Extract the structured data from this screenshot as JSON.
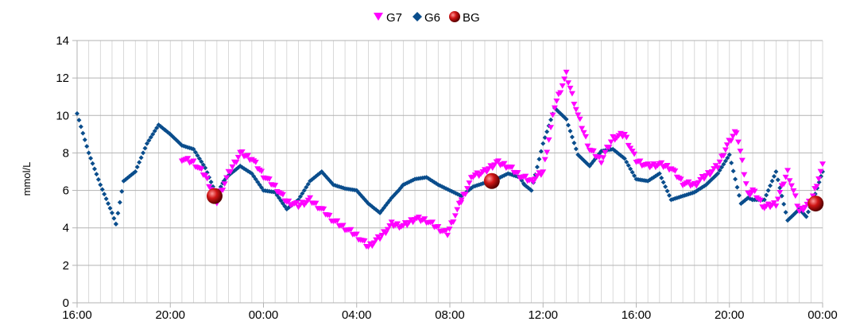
{
  "chart_data": {
    "type": "scatter",
    "ylabel": "mmol/L",
    "xlabel": "",
    "title": "",
    "ylim": [
      0,
      14
    ],
    "yticks": [
      0,
      2,
      4,
      6,
      8,
      10,
      12,
      14
    ],
    "xlim": [
      "16:00",
      "00:00 (+1 day)"
    ],
    "xticks": [
      "16:00",
      "20:00",
      "00:00",
      "04:00",
      "08:00",
      "12:00",
      "16:00",
      "20:00",
      "00:00"
    ],
    "grid": "vertical minor lines every 30 min, horizontal at y ticks",
    "legend": {
      "placement": "top-center",
      "entries": [
        "G7",
        "G6",
        "BG"
      ]
    },
    "series": [
      {
        "name": "G6",
        "color": "#0a4d8c",
        "marker": "diamond",
        "x_hours": [
          0.0,
          0.5,
          1.0,
          1.5,
          1.67,
          2.0,
          2.5,
          3.0,
          3.5,
          3.8,
          4.0,
          4.5,
          5.0,
          5.5,
          5.9,
          6.0,
          6.3,
          6.5,
          7.0,
          7.5,
          8.0,
          8.5,
          9.0,
          9.5,
          10.0,
          10.5,
          11.0,
          11.5,
          12.0,
          12.5,
          13.0,
          13.5,
          13.8,
          14.0,
          14.5,
          15.0,
          15.5,
          16.0,
          16.5,
          17.0,
          17.5,
          18.0,
          18.5,
          19.0,
          19.2,
          19.5,
          20.0,
          20.5,
          21.0,
          21.5,
          22.0,
          22.5,
          23.0,
          23.5,
          24.0,
          24.5,
          25.0,
          25.5,
          26.0,
          26.5,
          27.0,
          27.5,
          28.0,
          28.5,
          28.8,
          29.0,
          29.5,
          30.0,
          30.5,
          31.0,
          31.3,
          31.6,
          32.0
        ],
        "values": [
          10.1,
          8.0,
          6.3,
          4.8,
          4.2,
          6.5,
          7.0,
          8.5,
          9.5,
          9.2,
          9.0,
          8.4,
          8.2,
          7.2,
          6.0,
          5.8,
          6.5,
          6.8,
          7.3,
          6.9,
          6.0,
          5.9,
          5.0,
          5.5,
          6.5,
          7.0,
          6.3,
          6.1,
          6.0,
          5.3,
          4.8,
          5.6,
          6.0,
          6.3,
          6.6,
          6.7,
          6.3,
          6.0,
          5.7,
          6.2,
          6.4,
          6.6,
          6.9,
          6.7,
          6.3,
          6.0,
          8.5,
          10.4,
          9.8,
          7.9,
          7.3,
          8.1,
          8.2,
          7.7,
          6.6,
          6.5,
          6.9,
          5.5,
          5.7,
          5.9,
          6.3,
          6.9,
          7.9,
          5.3,
          5.6,
          5.5,
          5.5,
          7.0,
          4.4,
          5.0,
          4.6,
          5.5,
          7.0
        ]
      },
      {
        "name": "G7",
        "color": "#ff00ff",
        "marker": "triangle-down",
        "x_hours": [
          4.5,
          5.0,
          5.5,
          6.0,
          6.5,
          7.0,
          7.5,
          8.0,
          8.5,
          9.0,
          9.5,
          10.0,
          10.5,
          11.0,
          11.5,
          12.0,
          12.5,
          13.0,
          13.5,
          14.0,
          14.5,
          15.0,
          15.5,
          15.9,
          16.5,
          17.0,
          17.5,
          18.0,
          18.5,
          19.0,
          19.5,
          20.0,
          20.5,
          21.0,
          21.5,
          22.0,
          22.5,
          23.0,
          23.5,
          24.0,
          24.5,
          25.0,
          25.5,
          26.0,
          26.5,
          27.0,
          27.5,
          27.9,
          28.3,
          28.8,
          29.0,
          29.5,
          30.0,
          30.5,
          31.0,
          31.5,
          32.0
        ],
        "values": [
          7.7,
          7.5,
          6.8,
          5.4,
          6.9,
          8.0,
          7.7,
          6.8,
          6.2,
          5.4,
          5.2,
          5.5,
          5.0,
          4.4,
          4.0,
          3.6,
          3.0,
          3.5,
          4.2,
          4.1,
          4.5,
          4.4,
          4.0,
          3.7,
          5.5,
          6.8,
          7.0,
          7.5,
          7.3,
          6.8,
          6.5,
          7.0,
          10.5,
          12.2,
          10.0,
          8.2,
          7.6,
          8.8,
          9.0,
          7.6,
          7.3,
          7.4,
          7.2,
          6.4,
          6.3,
          6.8,
          7.3,
          8.4,
          9.2,
          5.8,
          6.0,
          5.1,
          5.3,
          7.0,
          4.9,
          5.4,
          7.3
        ]
      },
      {
        "name": "BG",
        "color": "#cc1111",
        "marker": "circle",
        "x_hours": [
          5.9,
          17.8,
          31.7
        ],
        "values": [
          5.7,
          6.5,
          5.3
        ]
      }
    ]
  }
}
